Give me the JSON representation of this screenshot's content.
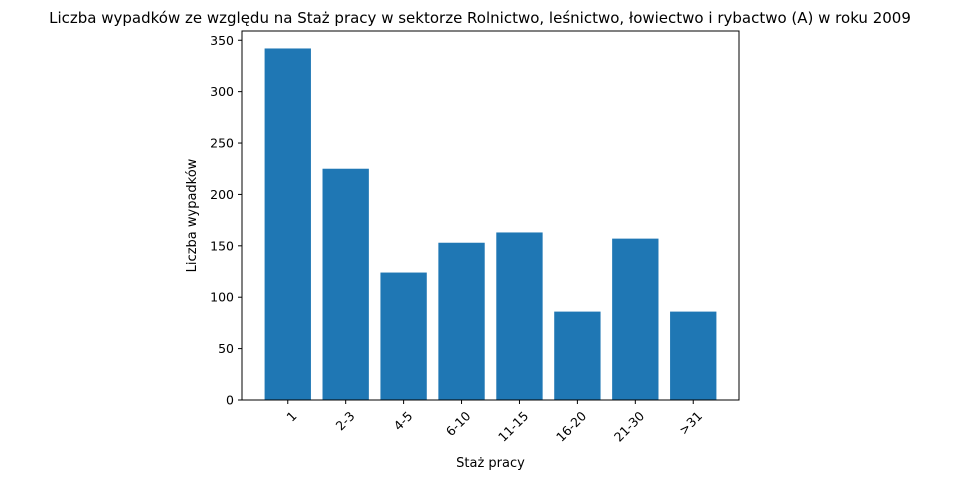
{
  "chart_data": {
    "type": "bar",
    "title": "Liczba wypadków ze względu na Staż pracy w sektorze Rolnictwo, leśnictwo, łowiectwo i rybactwo (A) w roku 2009",
    "xlabel": "Staż pracy",
    "ylabel": "Liczba wypadków",
    "categories": [
      "1",
      "2-3",
      "4-5",
      "6-10",
      "11-15",
      "16-20",
      "21-30",
      ">31"
    ],
    "values": [
      342,
      225,
      124,
      153,
      163,
      86,
      157,
      86
    ],
    "ylim": [
      0,
      359
    ],
    "yticks": [
      0,
      50,
      100,
      150,
      200,
      250,
      300,
      350
    ],
    "grid": false,
    "bar_color": "#1f77b4"
  }
}
